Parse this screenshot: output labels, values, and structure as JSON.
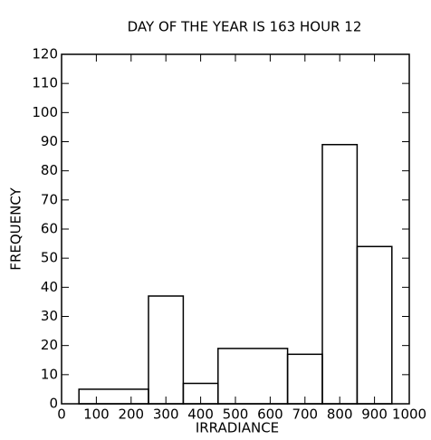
{
  "chart_data": {
    "type": "histogram",
    "title": "DAY OF THE YEAR IS 163 HOUR 12",
    "x_label": "IRRADIANCE",
    "y_label": "FREQUENCY",
    "bins": [
      50,
      250,
      350,
      450,
      650,
      750,
      850,
      950
    ],
    "values": [
      5,
      37,
      7,
      19,
      17,
      89,
      54
    ],
    "color": "#000000",
    "xlim": [
      0,
      1000
    ],
    "xticks": [
      0,
      100,
      200,
      300,
      400,
      500,
      600,
      700,
      800,
      900,
      1000
    ],
    "ylim": [
      0,
      120
    ],
    "yticks": [
      0,
      10,
      20,
      30,
      40,
      50,
      60,
      70,
      80,
      90,
      100,
      110,
      120
    ]
  }
}
